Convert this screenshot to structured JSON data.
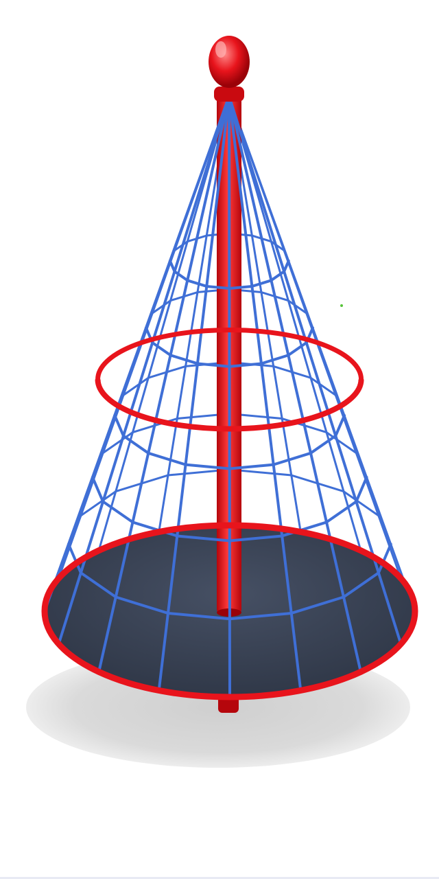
{
  "scene": {
    "subject": "cone-net-spinner-icon",
    "colors": {
      "background": "#ffffff",
      "frame_red": "#e8141c",
      "frame_red_dark": "#b5060c",
      "net_blue": "#3f6fd6",
      "platform": "#3a4456",
      "shadow": "#d9d9d9",
      "highlight": "#ff8a8a"
    }
  }
}
